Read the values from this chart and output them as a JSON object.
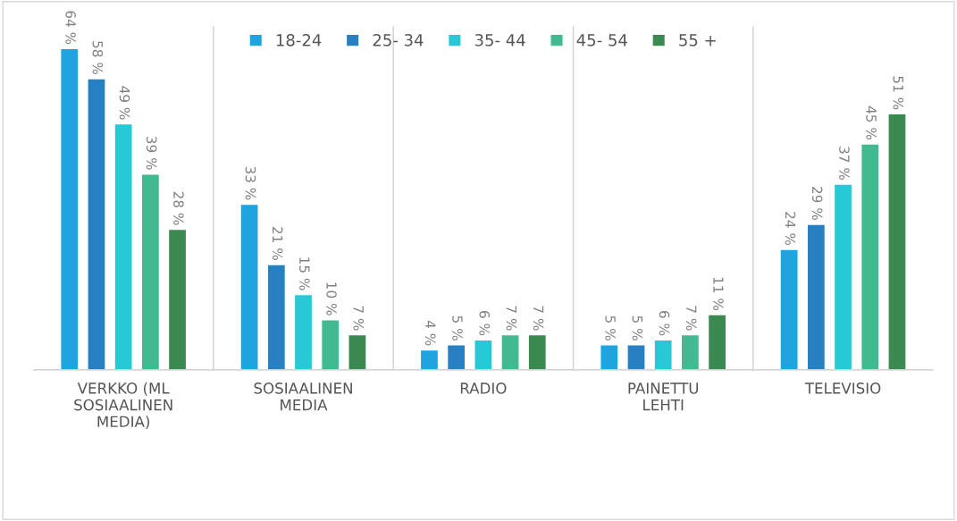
{
  "chart_data": {
    "type": "bar",
    "categories": [
      "VERKKO (ML SOSIAALINEN MEDIA)",
      "SOSIAALINEN MEDIA",
      "RADIO",
      "PAINETTU LEHTI",
      "TELEVISIO"
    ],
    "series": [
      {
        "name": "18-24",
        "color": "#1ea5e0",
        "values": [
          64,
          33,
          4,
          5,
          24
        ],
        "value_labels": [
          "64 %",
          "33 %",
          "4 %",
          "5 %",
          "24 %"
        ]
      },
      {
        "name": "25- 34",
        "color": "#2680c2",
        "values": [
          58,
          21,
          5,
          5,
          29
        ],
        "value_labels": [
          "58 %",
          "21 %",
          "5 %",
          "5 %",
          "29 %"
        ]
      },
      {
        "name": "35- 44",
        "color": "#27c9d6",
        "values": [
          49,
          15,
          6,
          6,
          37
        ],
        "value_labels": [
          "49 %",
          "15 %",
          "6 %",
          "6 %",
          "37 %"
        ]
      },
      {
        "name": "45- 54",
        "color": "#41b991",
        "values": [
          39,
          10,
          7,
          7,
          45
        ],
        "value_labels": [
          "39 %",
          "10 %",
          "7 %",
          "7 %",
          "45 %"
        ]
      },
      {
        "name": "55 +",
        "color": "#3b8a52",
        "values": [
          28,
          7,
          7,
          11,
          51
        ],
        "value_labels": [
          "28 %",
          "7 %",
          "7 %",
          "11 %",
          "51 %"
        ]
      }
    ],
    "grid": "x",
    "legend": "top",
    "tick_labels": "x"
  }
}
